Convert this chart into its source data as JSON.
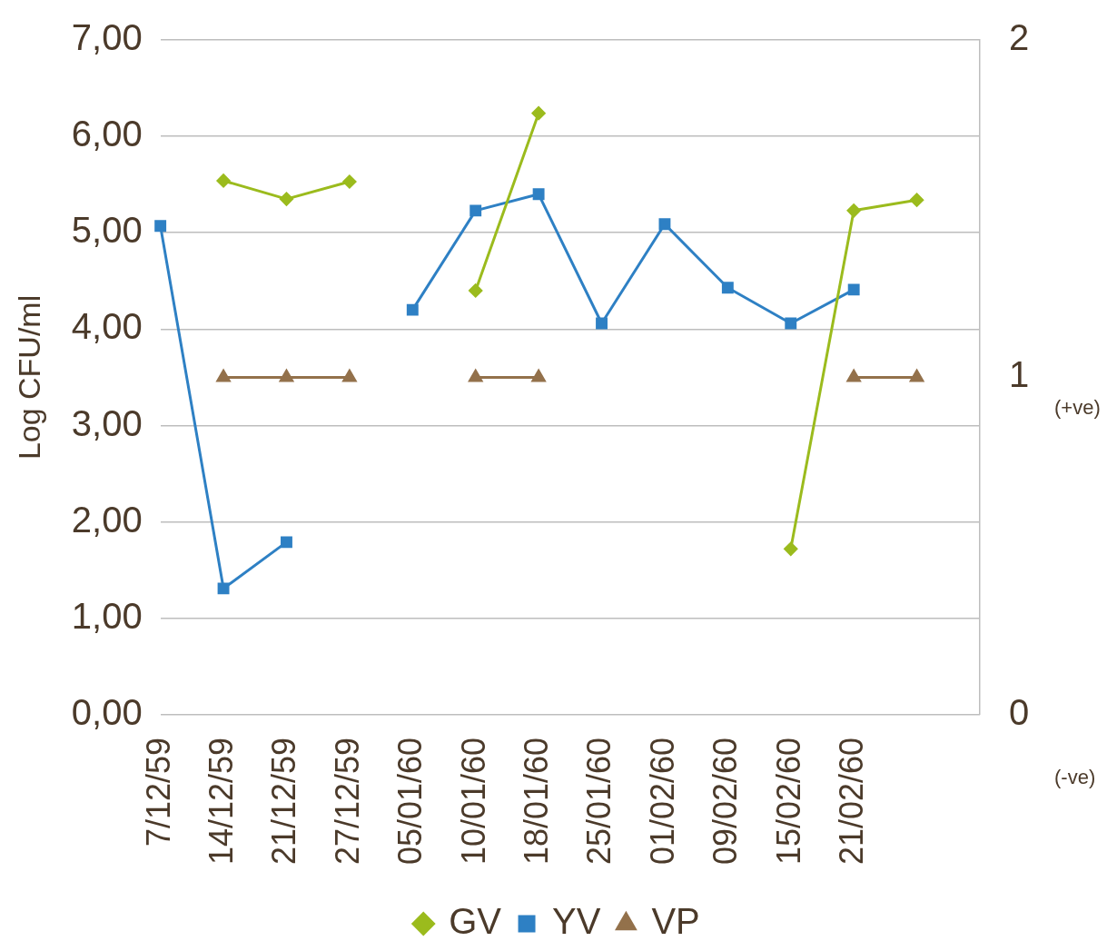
{
  "chart_data": {
    "type": "line",
    "ylabel": "Log CFU/ml",
    "categories": [
      "7/12/59",
      "14/12/59",
      "21/12/59",
      "27/12/59",
      "05/01/60",
      "10/01/60",
      "18/01/60",
      "25/01/60",
      "01/02/60",
      "09/02/60",
      "15/02/60",
      "21/02/60",
      null,
      null
    ],
    "series": [
      {
        "name": "GV",
        "color": "#9bbb1d",
        "marker": "diamond",
        "values": [
          null,
          5.54,
          5.35,
          5.53,
          null,
          4.4,
          6.24,
          null,
          null,
          null,
          1.72,
          5.23,
          5.34,
          null
        ]
      },
      {
        "name": "YV",
        "color": "#2e80c4",
        "marker": "square",
        "values": [
          5.07,
          1.31,
          1.79,
          null,
          4.2,
          5.23,
          5.4,
          4.06,
          5.09,
          4.43,
          4.06,
          4.41,
          null,
          null
        ]
      },
      {
        "name": "VP",
        "color": "#93714b",
        "marker": "triangle",
        "axis": "y2",
        "values": [
          null,
          1,
          1,
          1,
          null,
          1,
          1,
          null,
          null,
          null,
          null,
          1,
          1,
          null
        ]
      }
    ],
    "ylim": [
      0,
      7
    ],
    "yticks": [
      {
        "value": 0,
        "label": "0,00"
      },
      {
        "value": 1,
        "label": "1,00"
      },
      {
        "value": 2,
        "label": "2,00"
      },
      {
        "value": 3,
        "label": "3,00"
      },
      {
        "value": 4,
        "label": "4,00"
      },
      {
        "value": 5,
        "label": "5,00"
      },
      {
        "value": 6,
        "label": "6,00"
      },
      {
        "value": 7,
        "label": "7,00"
      }
    ],
    "y2lim": [
      0,
      2
    ],
    "y2ticks": [
      0,
      1,
      2
    ],
    "annotations": [
      "(+ve)",
      "(-ve)"
    ],
    "grid": "y",
    "legend": "bottom"
  }
}
